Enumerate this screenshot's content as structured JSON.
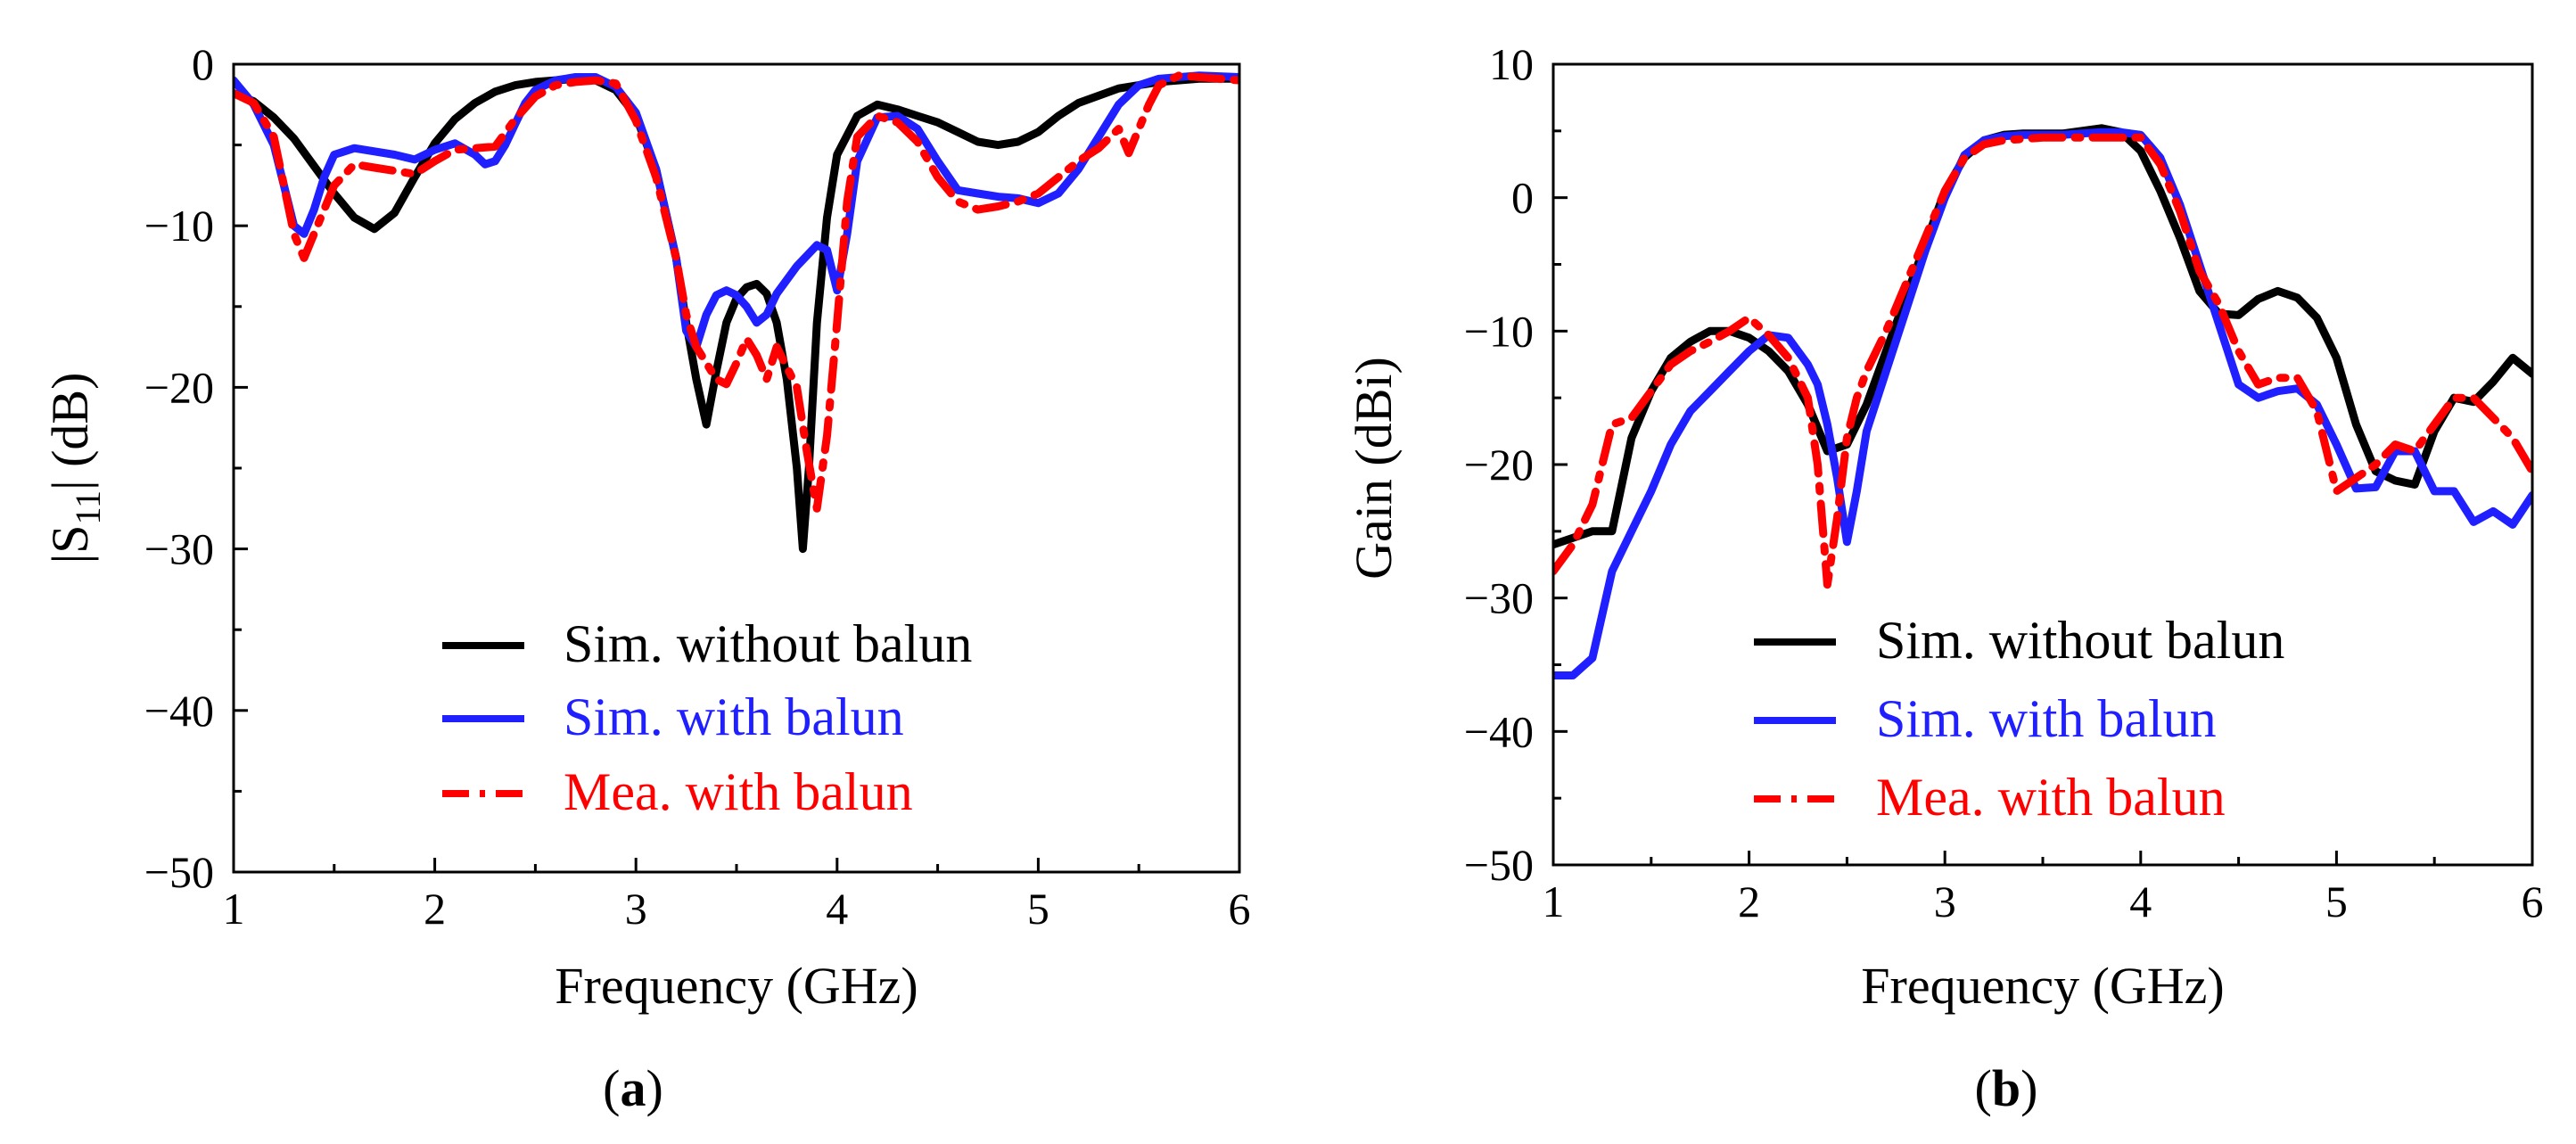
{
  "colors": {
    "black": "#000000",
    "blue": "#1f1fff",
    "red": "#ff0000"
  },
  "chart_data": [
    {
      "id": "a",
      "type": "line",
      "caption_open": "(",
      "caption_letter": "a",
      "caption_close": ")",
      "xlabel": "Frequency (GHz)",
      "ylabel": "|S11| (dB)",
      "ylabel_main": "|S",
      "ylabel_sub": "11",
      "ylabel_rest": "| (dB)",
      "xlim": [
        1,
        6
      ],
      "ylim": [
        -50,
        0
      ],
      "xticks": [
        1,
        2,
        3,
        4,
        5,
        6
      ],
      "xtick_labels": [
        "1",
        "2",
        "3",
        "4",
        "5",
        "6"
      ],
      "yticks": [
        -50,
        -40,
        -30,
        -20,
        -10,
        0
      ],
      "ytick_labels": [
        "−50",
        "−40",
        "−30",
        "−20",
        "−10",
        "0"
      ],
      "legend_position": "bottom-right",
      "series": [
        {
          "name": "Sim. without balun",
          "color": "#000000",
          "dash": "solid",
          "x": [
            1.0,
            1.1,
            1.2,
            1.3,
            1.4,
            1.5,
            1.6,
            1.7,
            1.8,
            1.9,
            2.0,
            2.1,
            2.2,
            2.3,
            2.4,
            2.5,
            2.6,
            2.7,
            2.8,
            2.9,
            3.0,
            3.1,
            3.2,
            3.25,
            3.3,
            3.35,
            3.4,
            3.45,
            3.5,
            3.55,
            3.6,
            3.65,
            3.7,
            3.75,
            3.8,
            3.83,
            3.86,
            3.9,
            3.95,
            4.0,
            4.1,
            4.2,
            4.3,
            4.4,
            4.5,
            4.6,
            4.7,
            4.8,
            4.9,
            5.0,
            5.1,
            5.2,
            5.4,
            5.6,
            5.8,
            6.0
          ],
          "y": [
            -1.8,
            -2.3,
            -3.3,
            -4.6,
            -6.3,
            -8.0,
            -9.5,
            -10.2,
            -9.2,
            -7.0,
            -4.9,
            -3.4,
            -2.4,
            -1.7,
            -1.3,
            -1.1,
            -1.0,
            -0.9,
            -1.0,
            -1.6,
            -3.2,
            -6.5,
            -12.0,
            -16.0,
            -19.5,
            -22.3,
            -19.0,
            -16.0,
            -14.5,
            -13.8,
            -13.6,
            -14.2,
            -16.0,
            -19.5,
            -25.0,
            -30.0,
            -25.0,
            -16.0,
            -9.5,
            -5.6,
            -3.2,
            -2.5,
            -2.8,
            -3.2,
            -3.6,
            -4.2,
            -4.8,
            -5.0,
            -4.8,
            -4.2,
            -3.2,
            -2.4,
            -1.5,
            -1.1,
            -0.9,
            -0.9
          ]
        },
        {
          "name": "Sim. with balun",
          "color": "#1f1fff",
          "dash": "solid",
          "x": [
            1.0,
            1.1,
            1.2,
            1.25,
            1.3,
            1.35,
            1.4,
            1.45,
            1.5,
            1.6,
            1.7,
            1.8,
            1.9,
            2.0,
            2.1,
            2.2,
            2.25,
            2.3,
            2.35,
            2.4,
            2.45,
            2.5,
            2.6,
            2.7,
            2.8,
            2.9,
            3.0,
            3.1,
            3.2,
            3.25,
            3.3,
            3.35,
            3.4,
            3.45,
            3.5,
            3.55,
            3.6,
            3.65,
            3.7,
            3.8,
            3.9,
            3.95,
            4.0,
            4.05,
            4.1,
            4.2,
            4.3,
            4.4,
            4.5,
            4.6,
            4.7,
            4.8,
            4.9,
            5.0,
            5.1,
            5.2,
            5.3,
            5.4,
            5.5,
            5.6,
            5.8,
            6.0
          ],
          "y": [
            -1.0,
            -2.5,
            -5.0,
            -7.5,
            -10.0,
            -10.5,
            -9.0,
            -7.0,
            -5.6,
            -5.2,
            -5.4,
            -5.6,
            -5.9,
            -5.3,
            -4.9,
            -5.6,
            -6.2,
            -6.0,
            -5.0,
            -3.7,
            -2.4,
            -1.6,
            -1.0,
            -0.8,
            -0.8,
            -1.4,
            -3.0,
            -6.5,
            -12.0,
            -16.5,
            -17.5,
            -15.5,
            -14.3,
            -14.0,
            -14.3,
            -15.0,
            -16.0,
            -15.5,
            -14.2,
            -12.5,
            -11.2,
            -11.5,
            -14.0,
            -10.5,
            -6.0,
            -3.3,
            -3.2,
            -4.0,
            -6.0,
            -7.8,
            -8.0,
            -8.2,
            -8.3,
            -8.6,
            -8.0,
            -6.5,
            -4.5,
            -2.5,
            -1.3,
            -0.9,
            -0.7,
            -0.8
          ]
        },
        {
          "name": "Mea. with balun",
          "color": "#ff0000",
          "dash": "dashdot",
          "x": [
            1.0,
            1.1,
            1.2,
            1.25,
            1.3,
            1.35,
            1.4,
            1.5,
            1.6,
            1.7,
            1.8,
            1.9,
            2.0,
            2.1,
            2.2,
            2.3,
            2.4,
            2.5,
            2.6,
            2.7,
            2.8,
            2.9,
            3.0,
            3.1,
            3.2,
            3.25,
            3.3,
            3.35,
            3.4,
            3.45,
            3.5,
            3.55,
            3.6,
            3.65,
            3.7,
            3.8,
            3.85,
            3.9,
            3.95,
            4.0,
            4.05,
            4.1,
            4.2,
            4.3,
            4.4,
            4.5,
            4.6,
            4.7,
            4.8,
            4.9,
            5.0,
            5.1,
            5.2,
            5.3,
            5.4,
            5.45,
            5.5,
            5.55,
            5.6,
            5.7,
            5.8,
            6.0
          ],
          "y": [
            -1.8,
            -2.4,
            -4.5,
            -7.5,
            -10.5,
            -12.0,
            -10.5,
            -7.5,
            -6.2,
            -6.4,
            -6.6,
            -6.8,
            -6.0,
            -5.3,
            -5.2,
            -5.1,
            -3.4,
            -2.0,
            -1.3,
            -1.1,
            -1.0,
            -1.2,
            -3.5,
            -7.0,
            -12.0,
            -15.5,
            -17.5,
            -18.5,
            -19.5,
            -19.8,
            -18.5,
            -17.0,
            -18.0,
            -19.5,
            -17.5,
            -20.0,
            -24.0,
            -27.5,
            -23.0,
            -16.0,
            -8.5,
            -4.5,
            -3.2,
            -3.6,
            -4.8,
            -7.0,
            -8.5,
            -9.0,
            -8.8,
            -8.5,
            -8.0,
            -7.0,
            -6.0,
            -5.2,
            -4.0,
            -5.5,
            -4.0,
            -2.5,
            -1.3,
            -0.7,
            -0.8,
            -1.0
          ]
        }
      ]
    },
    {
      "id": "b",
      "type": "line",
      "caption_open": "(",
      "caption_letter": "b",
      "caption_close": ")",
      "xlabel": "Frequency (GHz)",
      "ylabel": "Gain (dBi)",
      "xlim": [
        1,
        6
      ],
      "ylim": [
        -50,
        10
      ],
      "xticks": [
        1,
        2,
        3,
        4,
        5,
        6
      ],
      "xtick_labels": [
        "1",
        "2",
        "3",
        "4",
        "5",
        "6"
      ],
      "yticks": [
        -50,
        -40,
        -30,
        -20,
        -10,
        0,
        10
      ],
      "ytick_labels": [
        "−50",
        "−40",
        "−30",
        "−20",
        "−10",
        "0",
        "10"
      ],
      "legend_position": "bottom-right",
      "series": [
        {
          "name": "Sim. without balun",
          "color": "#000000",
          "dash": "solid",
          "x": [
            1.0,
            1.1,
            1.2,
            1.3,
            1.4,
            1.5,
            1.6,
            1.7,
            1.8,
            1.9,
            2.0,
            2.1,
            2.2,
            2.3,
            2.4,
            2.5,
            2.6,
            2.7,
            2.8,
            2.9,
            3.0,
            3.1,
            3.2,
            3.3,
            3.4,
            3.5,
            3.6,
            3.7,
            3.8,
            3.9,
            4.0,
            4.1,
            4.2,
            4.3,
            4.4,
            4.5,
            4.6,
            4.7,
            4.8,
            4.9,
            5.0,
            5.1,
            5.2,
            5.3,
            5.4,
            5.5,
            5.6,
            5.7,
            5.8,
            5.9,
            6.0
          ],
          "y": [
            -26.0,
            -25.5,
            -25.0,
            -25.0,
            -18.0,
            -14.5,
            -12.0,
            -10.8,
            -10.0,
            -10.0,
            -10.5,
            -11.5,
            -13.0,
            -15.5,
            -19.0,
            -18.5,
            -15.5,
            -11.5,
            -7.5,
            -3.5,
            0.5,
            3.0,
            4.3,
            4.7,
            4.8,
            4.8,
            4.8,
            5.0,
            5.2,
            4.9,
            3.5,
            0.5,
            -3.0,
            -7.0,
            -8.7,
            -8.8,
            -7.6,
            -7.0,
            -7.5,
            -9.0,
            -12.0,
            -17.0,
            -20.5,
            -21.2,
            -21.5,
            -17.5,
            -15.0,
            -15.3,
            -13.8,
            -12.0,
            -13.2
          ]
        },
        {
          "name": "Sim. with balun",
          "color": "#1f1fff",
          "dash": "solid",
          "x": [
            1.0,
            1.1,
            1.2,
            1.3,
            1.4,
            1.5,
            1.6,
            1.7,
            1.8,
            1.9,
            2.0,
            2.1,
            2.2,
            2.3,
            2.35,
            2.4,
            2.45,
            2.5,
            2.55,
            2.6,
            2.7,
            2.8,
            2.9,
            3.0,
            3.1,
            3.2,
            3.3,
            3.4,
            3.5,
            3.6,
            3.7,
            3.8,
            3.9,
            4.0,
            4.1,
            4.2,
            4.3,
            4.4,
            4.5,
            4.6,
            4.7,
            4.8,
            4.9,
            5.0,
            5.1,
            5.2,
            5.3,
            5.4,
            5.5,
            5.6,
            5.7,
            5.8,
            5.9,
            6.0
          ],
          "y": [
            -35.8,
            -35.8,
            -34.5,
            -28.0,
            -25.0,
            -22.0,
            -18.5,
            -16.0,
            -14.5,
            -13.0,
            -11.5,
            -10.3,
            -10.5,
            -12.5,
            -14.0,
            -17.0,
            -21.0,
            -25.8,
            -22.0,
            -17.5,
            -13.0,
            -8.5,
            -4.0,
            0.0,
            3.2,
            4.3,
            4.6,
            4.7,
            4.7,
            4.7,
            4.8,
            4.9,
            4.9,
            4.7,
            3.0,
            -0.5,
            -5.0,
            -9.5,
            -14.0,
            -15.0,
            -14.5,
            -14.3,
            -15.5,
            -18.5,
            -21.8,
            -21.7,
            -19.0,
            -19.0,
            -22.0,
            -22.0,
            -24.3,
            -23.5,
            -24.5,
            -22.3
          ]
        },
        {
          "name": "Mea. with balun",
          "color": "#ff0000",
          "dash": "dashdot",
          "x": [
            1.0,
            1.1,
            1.2,
            1.3,
            1.4,
            1.5,
            1.6,
            1.7,
            1.8,
            1.9,
            2.0,
            2.1,
            2.2,
            2.3,
            2.35,
            2.4,
            2.45,
            2.5,
            2.55,
            2.6,
            2.7,
            2.8,
            2.9,
            3.0,
            3.1,
            3.2,
            3.3,
            3.4,
            3.5,
            3.6,
            3.7,
            3.8,
            3.9,
            4.0,
            4.1,
            4.2,
            4.3,
            4.4,
            4.5,
            4.6,
            4.7,
            4.8,
            4.9,
            5.0,
            5.1,
            5.2,
            5.3,
            5.4,
            5.5,
            5.6,
            5.7,
            5.8,
            5.9,
            6.0
          ],
          "y": [
            -28.0,
            -26.0,
            -23.0,
            -17.0,
            -16.5,
            -14.5,
            -12.5,
            -11.5,
            -10.8,
            -10.0,
            -9.0,
            -10.3,
            -12.0,
            -15.0,
            -20.0,
            -29.0,
            -24.0,
            -18.0,
            -15.0,
            -13.0,
            -10.0,
            -6.5,
            -3.0,
            0.5,
            3.0,
            4.0,
            4.3,
            4.4,
            4.5,
            4.5,
            4.5,
            4.5,
            4.5,
            4.5,
            2.5,
            -1.0,
            -5.5,
            -8.0,
            -11.5,
            -14.0,
            -13.5,
            -13.5,
            -16.0,
            -22.0,
            -21.0,
            -20.0,
            -18.5,
            -19.0,
            -17.0,
            -15.0,
            -15.0,
            -16.5,
            -18.0,
            -20.5
          ]
        }
      ]
    }
  ]
}
